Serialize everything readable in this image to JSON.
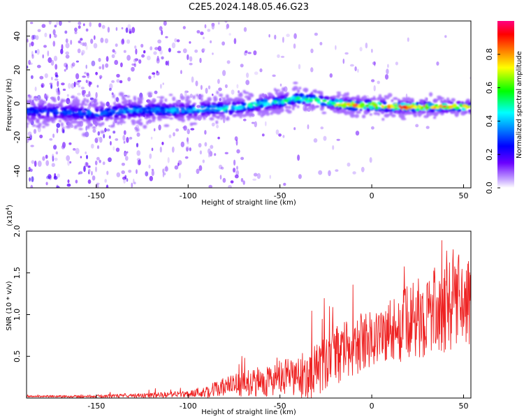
{
  "title": "C2E5.2024.148.05.46.G23",
  "chart_data": [
    {
      "type": "heatmap",
      "xlabel": "Height of straight line (km)",
      "ylabel": "Frequency (Hz)",
      "xlim": [
        -188,
        54
      ],
      "ylim": [
        -50,
        49
      ],
      "xticks": [
        -150,
        -100,
        -50,
        0,
        50
      ],
      "yticks": [
        -40,
        -20,
        0,
        20,
        40
      ],
      "colorbar": {
        "label": "Normalized spectral amplitude",
        "range": [
          0.0,
          1.0
        ],
        "ticks": [
          "0.0",
          "0.2",
          "0.4",
          "0.6",
          "0.8"
        ],
        "colormap": [
          "#ffffff",
          "#6a00ff",
          "#0000ff",
          "#00ffff",
          "#00ff00",
          "#ffff00",
          "#ff0000",
          "#ff00aa"
        ]
      },
      "ridge": {
        "x": [
          -188,
          -170,
          -150,
          -130,
          -110,
          -100,
          -90,
          -80,
          -70,
          -60,
          -50,
          -40,
          -30,
          -20,
          -10,
          0,
          10,
          20,
          30,
          40,
          54
        ],
        "y": [
          -5,
          -5,
          -6,
          -4,
          -4,
          -4,
          -3,
          -3,
          -2,
          0,
          1,
          3,
          2,
          0,
          -1,
          -1,
          -2,
          -2,
          -2,
          -2,
          -2
        ]
      }
    },
    {
      "type": "line",
      "xlabel": "Height of straight line (km)",
      "ylabel": "SNR (10 * v/v)",
      "scale_label": "(x10",
      "scale_exponent": "4",
      "xlim": [
        -188,
        54
      ],
      "ylim": [
        0,
        2.0
      ],
      "xticks": [
        -150,
        -100,
        -50,
        0,
        50
      ],
      "yticks": [
        "0.5",
        "1.0",
        "1.5",
        "2.0"
      ],
      "color": "#ee2222",
      "envelope": {
        "x": [
          -188,
          -150,
          -120,
          -100,
          -90,
          -80,
          -70,
          -60,
          -50,
          -40,
          -30,
          -20,
          -10,
          0,
          10,
          20,
          30,
          40,
          54
        ],
        "mean": [
          0.02,
          0.02,
          0.03,
          0.05,
          0.08,
          0.13,
          0.17,
          0.2,
          0.23,
          0.25,
          0.32,
          0.5,
          0.62,
          0.72,
          0.8,
          0.9,
          1.0,
          1.1,
          1.15
        ],
        "spread": [
          0.01,
          0.02,
          0.03,
          0.04,
          0.08,
          0.12,
          0.15,
          0.18,
          0.22,
          0.25,
          0.35,
          0.35,
          0.35,
          0.35,
          0.4,
          0.45,
          0.5,
          0.55,
          0.5
        ]
      }
    }
  ]
}
